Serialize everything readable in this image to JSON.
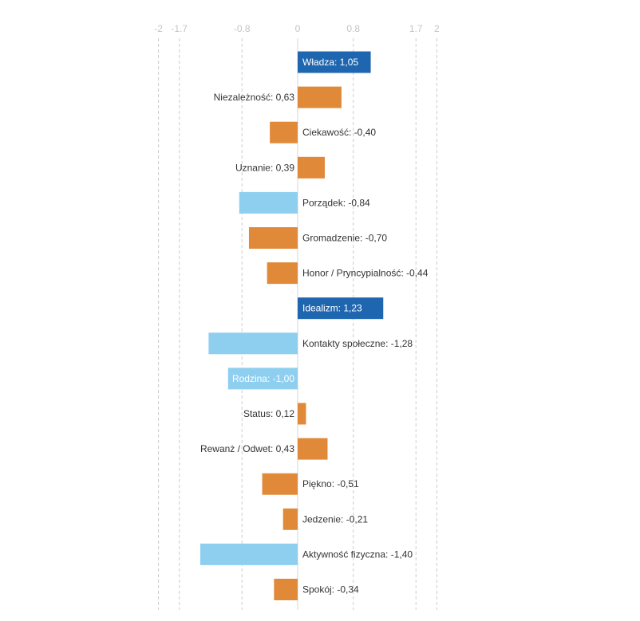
{
  "chart_data": {
    "type": "bar",
    "orientation": "horizontal",
    "title": "",
    "xlabel": "",
    "ylabel": "",
    "xlim": [
      -2,
      2
    ],
    "xticks": [
      {
        "value": -2,
        "label": "-2"
      },
      {
        "value": -1.7,
        "label": "-1.7"
      },
      {
        "value": -0.8,
        "label": "-0.8"
      },
      {
        "value": 0,
        "label": "0"
      },
      {
        "value": 0.8,
        "label": "0.8"
      },
      {
        "value": 1.7,
        "label": "1.7"
      },
      {
        "value": 2,
        "label": "2"
      }
    ],
    "tick_position": "top",
    "grid": "vertical-dashed",
    "legend": "none",
    "colors": {
      "high": "#1f66b0",
      "mid": "#e08a39",
      "low": "#8ecff0"
    },
    "bars": [
      {
        "category": "Władza",
        "label": "Władza: 1,05",
        "value": 1.05,
        "color_key": "high",
        "label_inside": true
      },
      {
        "category": "Niezależność",
        "label": "Niezależność: 0,63",
        "value": 0.63,
        "color_key": "mid",
        "label_inside": false
      },
      {
        "category": "Ciekawość",
        "label": "Ciekawość: -0,40",
        "value": -0.4,
        "color_key": "mid",
        "label_inside": false
      },
      {
        "category": "Uznanie",
        "label": "Uznanie: 0,39",
        "value": 0.39,
        "color_key": "mid",
        "label_inside": false
      },
      {
        "category": "Porządek",
        "label": "Porządek: -0,84",
        "value": -0.84,
        "color_key": "low",
        "label_inside": false
      },
      {
        "category": "Gromadzenie",
        "label": "Gromadzenie: -0,70",
        "value": -0.7,
        "color_key": "mid",
        "label_inside": false
      },
      {
        "category": "Honor / Pryncypialność",
        "label": "Honor / Pryncypialność: -0,44",
        "value": -0.44,
        "color_key": "mid",
        "label_inside": false
      },
      {
        "category": "Idealizm",
        "label": "Idealizm: 1,23",
        "value": 1.23,
        "color_key": "high",
        "label_inside": true
      },
      {
        "category": "Kontakty społeczne",
        "label": "Kontakty społeczne: -1,28",
        "value": -1.28,
        "color_key": "low",
        "label_inside": false
      },
      {
        "category": "Rodzina",
        "label": "Rodzina: -1,00",
        "value": -1.0,
        "color_key": "low",
        "label_inside": true
      },
      {
        "category": "Status",
        "label": "Status: 0,12",
        "value": 0.12,
        "color_key": "mid",
        "label_inside": false
      },
      {
        "category": "Rewanż / Odwet",
        "label": "Rewanż / Odwet: 0,43",
        "value": 0.43,
        "color_key": "mid",
        "label_inside": false
      },
      {
        "category": "Piękno",
        "label": "Piękno: -0,51",
        "value": -0.51,
        "color_key": "mid",
        "label_inside": false
      },
      {
        "category": "Jedzenie",
        "label": "Jedzenie: -0,21",
        "value": -0.21,
        "color_key": "mid",
        "label_inside": false
      },
      {
        "category": "Aktywność fizyczna",
        "label": "Aktywność fizyczna: -1,40",
        "value": -1.4,
        "color_key": "low",
        "label_inside": false
      },
      {
        "category": "Spokój",
        "label": "Spokój: -0,34",
        "value": -0.34,
        "color_key": "mid",
        "label_inside": false
      }
    ]
  }
}
